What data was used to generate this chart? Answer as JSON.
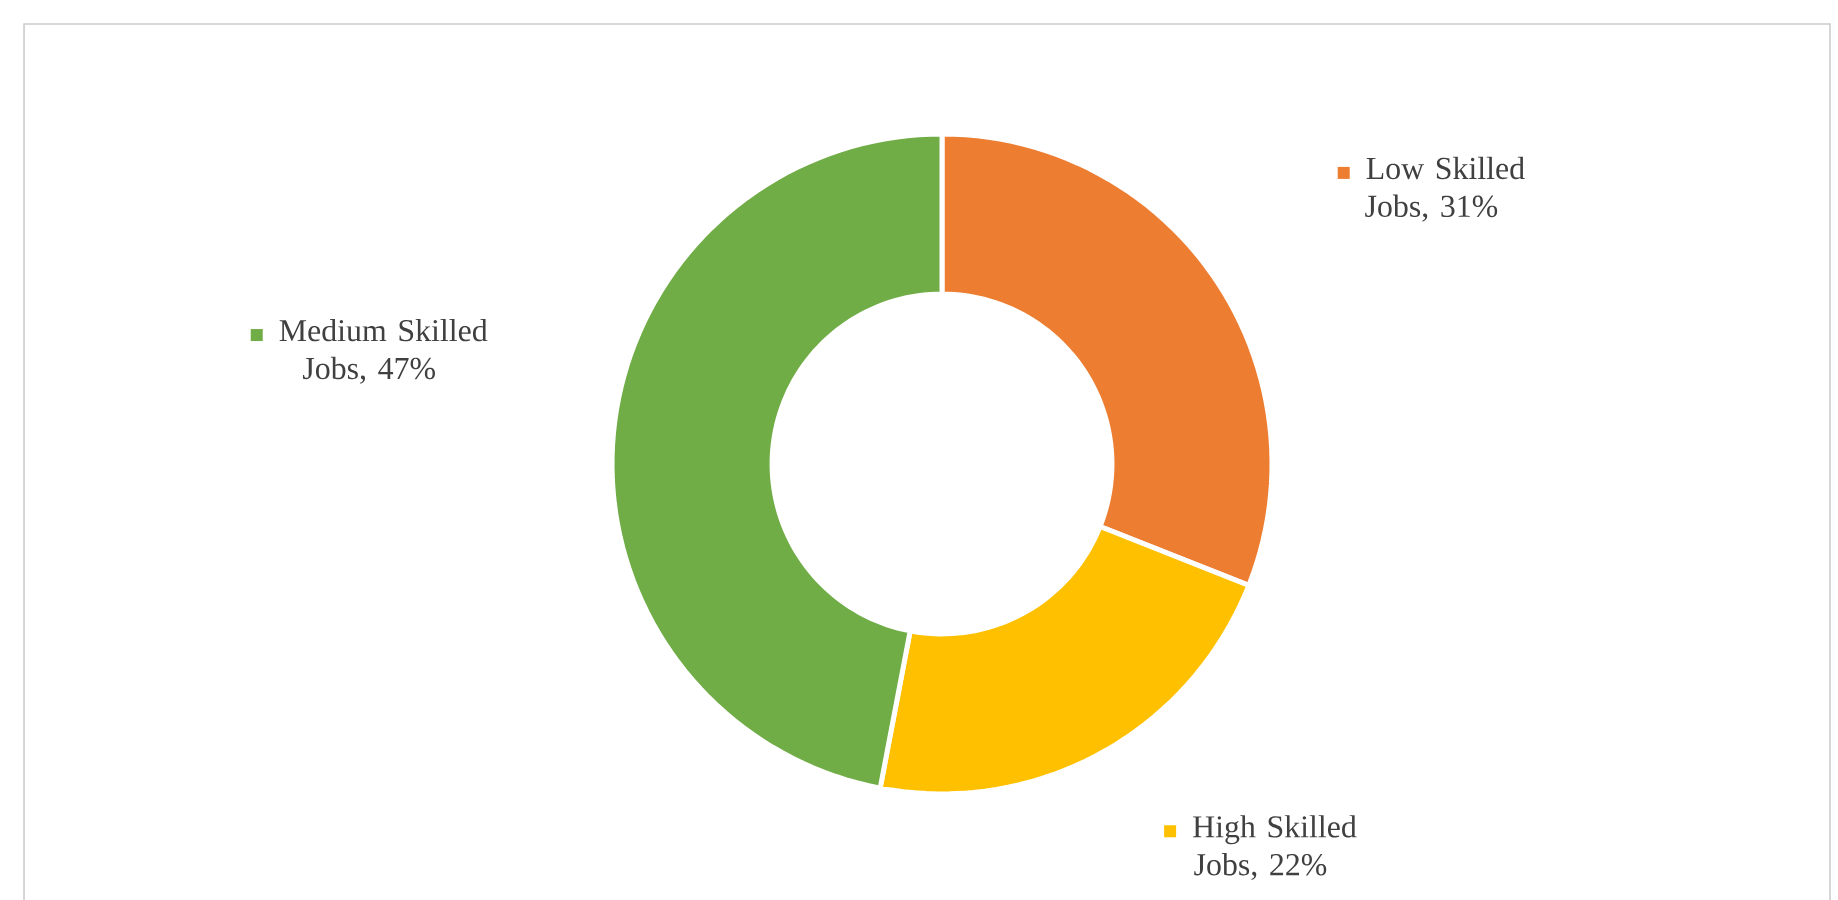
{
  "chart_data": {
    "type": "donut",
    "categories": [
      "Low Skilled Jobs",
      "High Skilled Jobs",
      "Medium Skilled Jobs"
    ],
    "values": [
      31,
      22,
      47
    ],
    "colors": [
      "#ed7d31",
      "#ffc000",
      "#70ad47"
    ],
    "value_labels": [
      ", 31%",
      ", 22%",
      ", 47%"
    ],
    "legend": "bottom left"
  }
}
